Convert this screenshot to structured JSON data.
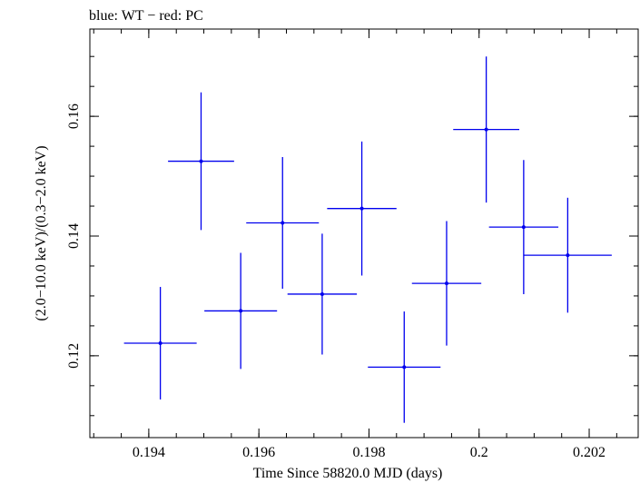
{
  "chart_data": {
    "type": "scatter",
    "title": "blue: WT − red: PC",
    "xlabel": "Time Since 58820.0 MJD (days)",
    "ylabel": "(2.0−10.0 keV)/(0.3−2.0 keV)",
    "xlim": [
      0.19293,
      0.20289
    ],
    "ylim": [
      0.10633,
      0.17458
    ],
    "x_ticks": [
      0.194,
      0.196,
      0.198,
      0.2,
      0.202
    ],
    "x_tick_labels": [
      "0.194",
      "0.196",
      "0.198",
      "0.2",
      "0.202"
    ],
    "x_minor_step": 0.0005,
    "y_ticks": [
      0.12,
      0.14,
      0.16
    ],
    "y_tick_labels": [
      "0.12",
      "0.14",
      "0.16"
    ],
    "y_minor_step": 0.005,
    "grid": false,
    "color": "#0000ee",
    "series": [
      {
        "points": [
          {
            "x": 0.19421,
            "xerr": 0.00066,
            "y": 0.1221,
            "yerr": 0.0094
          },
          {
            "x": 0.19495,
            "xerr": 0.0006,
            "y": 0.1525,
            "yerr": 0.0115
          },
          {
            "x": 0.19567,
            "xerr": 0.00066,
            "y": 0.1275,
            "yerr": 0.0097
          },
          {
            "x": 0.19643,
            "xerr": 0.00066,
            "y": 0.1422,
            "yerr": 0.011
          },
          {
            "x": 0.19715,
            "xerr": 0.00063,
            "y": 0.1303,
            "yerr": 0.0101
          },
          {
            "x": 0.19787,
            "xerr": 0.00063,
            "y": 0.1446,
            "yerr": 0.0112
          },
          {
            "x": 0.19864,
            "xerr": 0.00066,
            "y": 0.1181,
            "yerr": 0.0093
          },
          {
            "x": 0.19941,
            "xerr": 0.00063,
            "y": 0.1321,
            "yerr": 0.0104
          },
          {
            "x": 0.20013,
            "xerr": 0.0006,
            "y": 0.1578,
            "yerr": 0.0122
          },
          {
            "x": 0.20081,
            "xerr": 0.00063,
            "y": 0.1415,
            "yerr": 0.0112
          },
          {
            "x": 0.20161,
            "xerr": 0.0008,
            "y": 0.1368,
            "yerr": 0.0096
          }
        ]
      }
    ]
  }
}
